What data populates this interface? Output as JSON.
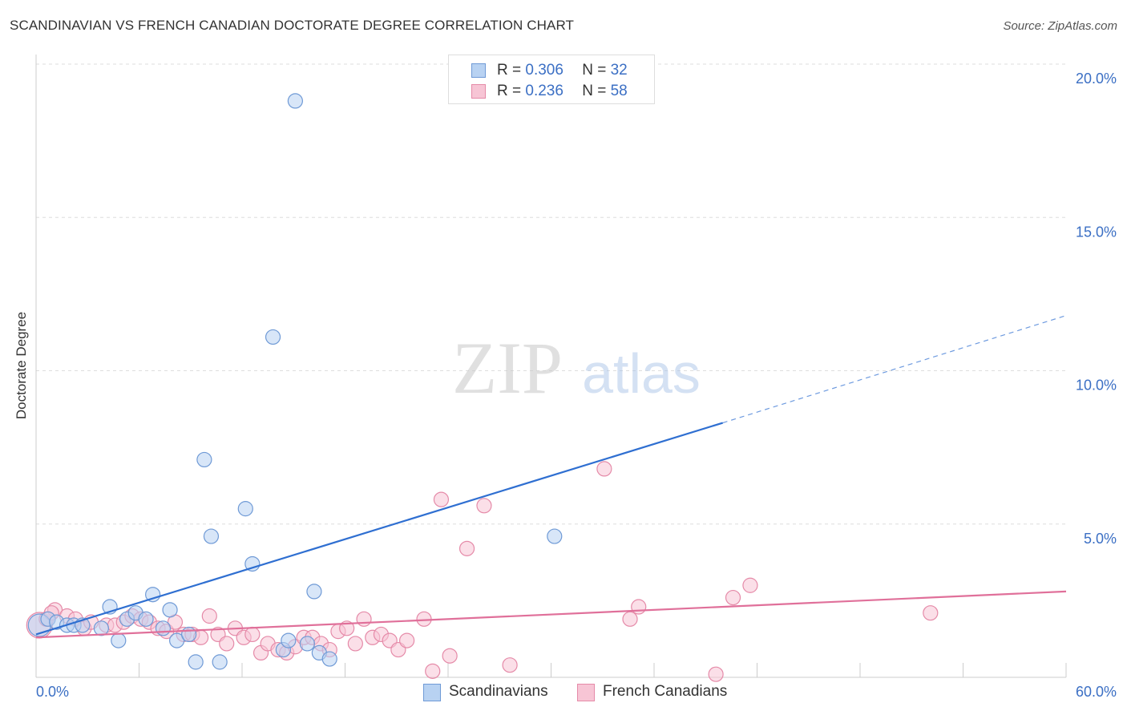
{
  "title": "SCANDINAVIAN VS FRENCH CANADIAN DOCTORATE DEGREE CORRELATION CHART",
  "source": "Source: ZipAtlas.com",
  "watermark": {
    "zip": "ZIP",
    "atlas": "atlas"
  },
  "legend_top": {
    "rows": [
      {
        "r_label": "R =",
        "r_value": "0.306",
        "n_label": "N =",
        "n_value": "32"
      },
      {
        "r_label": "R =",
        "r_value": "0.236",
        "n_label": "N =",
        "n_value": "58"
      }
    ]
  },
  "legend_bottom": {
    "items": [
      "Scandinavians",
      "French Canadians"
    ]
  },
  "colors": {
    "blue_fill": "#b8d2f2",
    "blue_stroke": "#6f9ad6",
    "blue_line": "#2f6fd1",
    "pink_fill": "#f7c5d5",
    "pink_stroke": "#e58aa8",
    "pink_line": "#e0709a",
    "tick_text": "#3b6fc4",
    "grid": "#dddddd"
  },
  "chart_data": {
    "type": "scatter",
    "title": "SCANDINAVIAN VS FRENCH CANADIAN DOCTORATE DEGREE CORRELATION CHART",
    "xlabel": "",
    "ylabel": "Doctorate Degree",
    "xlim": [
      0,
      60
    ],
    "ylim": [
      0,
      20
    ],
    "x_tick_labels": [
      "0.0%",
      "60.0%"
    ],
    "y_ticks": [
      5,
      10,
      15,
      20
    ],
    "y_tick_labels": [
      "5.0%",
      "10.0%",
      "15.0%",
      "20.0%"
    ],
    "grid": true,
    "series": [
      {
        "name": "Scandinavians",
        "r": 0.306,
        "n": 32,
        "trend": {
          "x0": 0,
          "y0": 1.4,
          "x1": 40,
          "y1": 8.3,
          "x_dash_end": 60,
          "y_dash_end": 11.8
        },
        "points": [
          [
            0.2,
            1.7,
            14
          ],
          [
            0.7,
            1.9,
            9
          ],
          [
            1.2,
            1.8,
            9
          ],
          [
            1.8,
            1.7,
            9
          ],
          [
            2.2,
            1.7,
            9
          ],
          [
            2.7,
            1.7,
            9
          ],
          [
            3.8,
            1.6,
            9
          ],
          [
            4.3,
            2.3,
            9
          ],
          [
            4.8,
            1.2,
            9
          ],
          [
            5.3,
            1.9,
            9
          ],
          [
            5.8,
            2.1,
            9
          ],
          [
            6.4,
            1.9,
            9
          ],
          [
            6.8,
            2.7,
            9
          ],
          [
            7.4,
            1.6,
            9
          ],
          [
            7.8,
            2.2,
            9
          ],
          [
            8.2,
            1.2,
            9
          ],
          [
            8.9,
            1.4,
            9
          ],
          [
            9.3,
            0.5,
            9
          ],
          [
            9.8,
            7.1,
            9
          ],
          [
            10.2,
            4.6,
            9
          ],
          [
            10.7,
            0.5,
            9
          ],
          [
            12.2,
            5.5,
            9
          ],
          [
            12.6,
            3.7,
            9
          ],
          [
            13.8,
            11.1,
            9
          ],
          [
            14.4,
            0.9,
            9
          ],
          [
            14.7,
            1.2,
            9
          ],
          [
            15.1,
            18.8,
            9
          ],
          [
            15.8,
            1.1,
            9
          ],
          [
            16.2,
            2.8,
            9
          ],
          [
            16.5,
            0.8,
            9
          ],
          [
            17.1,
            0.6,
            9
          ],
          [
            30.2,
            4.6,
            9
          ]
        ]
      },
      {
        "name": "French Canadians",
        "r": 0.236,
        "n": 58,
        "trend": {
          "x0": 0,
          "y0": 1.3,
          "x1": 60,
          "y1": 2.8
        },
        "points": [
          [
            0.2,
            1.7,
            16
          ],
          [
            0.6,
            1.9,
            9
          ],
          [
            1.1,
            2.2,
            9
          ],
          [
            1.8,
            2.0,
            9
          ],
          [
            2.3,
            1.9,
            9
          ],
          [
            2.8,
            1.6,
            9
          ],
          [
            3.2,
            1.8,
            9
          ],
          [
            4.1,
            1.7,
            9
          ],
          [
            4.6,
            1.7,
            9
          ],
          [
            5.1,
            1.8,
            9
          ],
          [
            5.6,
            2.0,
            9
          ],
          [
            6.1,
            1.9,
            9
          ],
          [
            6.6,
            1.8,
            9
          ],
          [
            7.1,
            1.6,
            9
          ],
          [
            7.6,
            1.5,
            9
          ],
          [
            8.1,
            1.8,
            9
          ],
          [
            8.6,
            1.4,
            9
          ],
          [
            9.1,
            1.4,
            9
          ],
          [
            9.6,
            1.3,
            9
          ],
          [
            10.1,
            2.0,
            9
          ],
          [
            10.6,
            1.4,
            9
          ],
          [
            11.1,
            1.1,
            9
          ],
          [
            11.6,
            1.6,
            9
          ],
          [
            12.1,
            1.3,
            9
          ],
          [
            12.6,
            1.4,
            9
          ],
          [
            13.1,
            0.8,
            9
          ],
          [
            13.5,
            1.1,
            9
          ],
          [
            14.1,
            0.9,
            9
          ],
          [
            14.6,
            0.8,
            9
          ],
          [
            15.1,
            1.0,
            9
          ],
          [
            15.6,
            1.3,
            9
          ],
          [
            16.1,
            1.3,
            9
          ],
          [
            16.6,
            1.1,
            9
          ],
          [
            17.1,
            0.9,
            9
          ],
          [
            17.6,
            1.5,
            9
          ],
          [
            18.1,
            1.6,
            9
          ],
          [
            18.6,
            1.1,
            9
          ],
          [
            19.1,
            1.9,
            9
          ],
          [
            19.6,
            1.3,
            9
          ],
          [
            20.1,
            1.4,
            9
          ],
          [
            20.6,
            1.2,
            9
          ],
          [
            21.1,
            0.9,
            9
          ],
          [
            21.6,
            1.2,
            9
          ],
          [
            22.6,
            1.9,
            9
          ],
          [
            23.1,
            0.2,
            9
          ],
          [
            23.6,
            5.8,
            9
          ],
          [
            24.1,
            0.7,
            9
          ],
          [
            25.1,
            4.2,
            9
          ],
          [
            26.1,
            5.6,
            9
          ],
          [
            27.6,
            0.4,
            9
          ],
          [
            33.1,
            6.8,
            9
          ],
          [
            34.6,
            1.9,
            9
          ],
          [
            35.1,
            2.3,
            9
          ],
          [
            39.6,
            0.1,
            9
          ],
          [
            40.6,
            2.6,
            9
          ],
          [
            41.6,
            3.0,
            9
          ],
          [
            52.1,
            2.1,
            9
          ],
          [
            0.9,
            2.1,
            9
          ]
        ]
      }
    ]
  }
}
